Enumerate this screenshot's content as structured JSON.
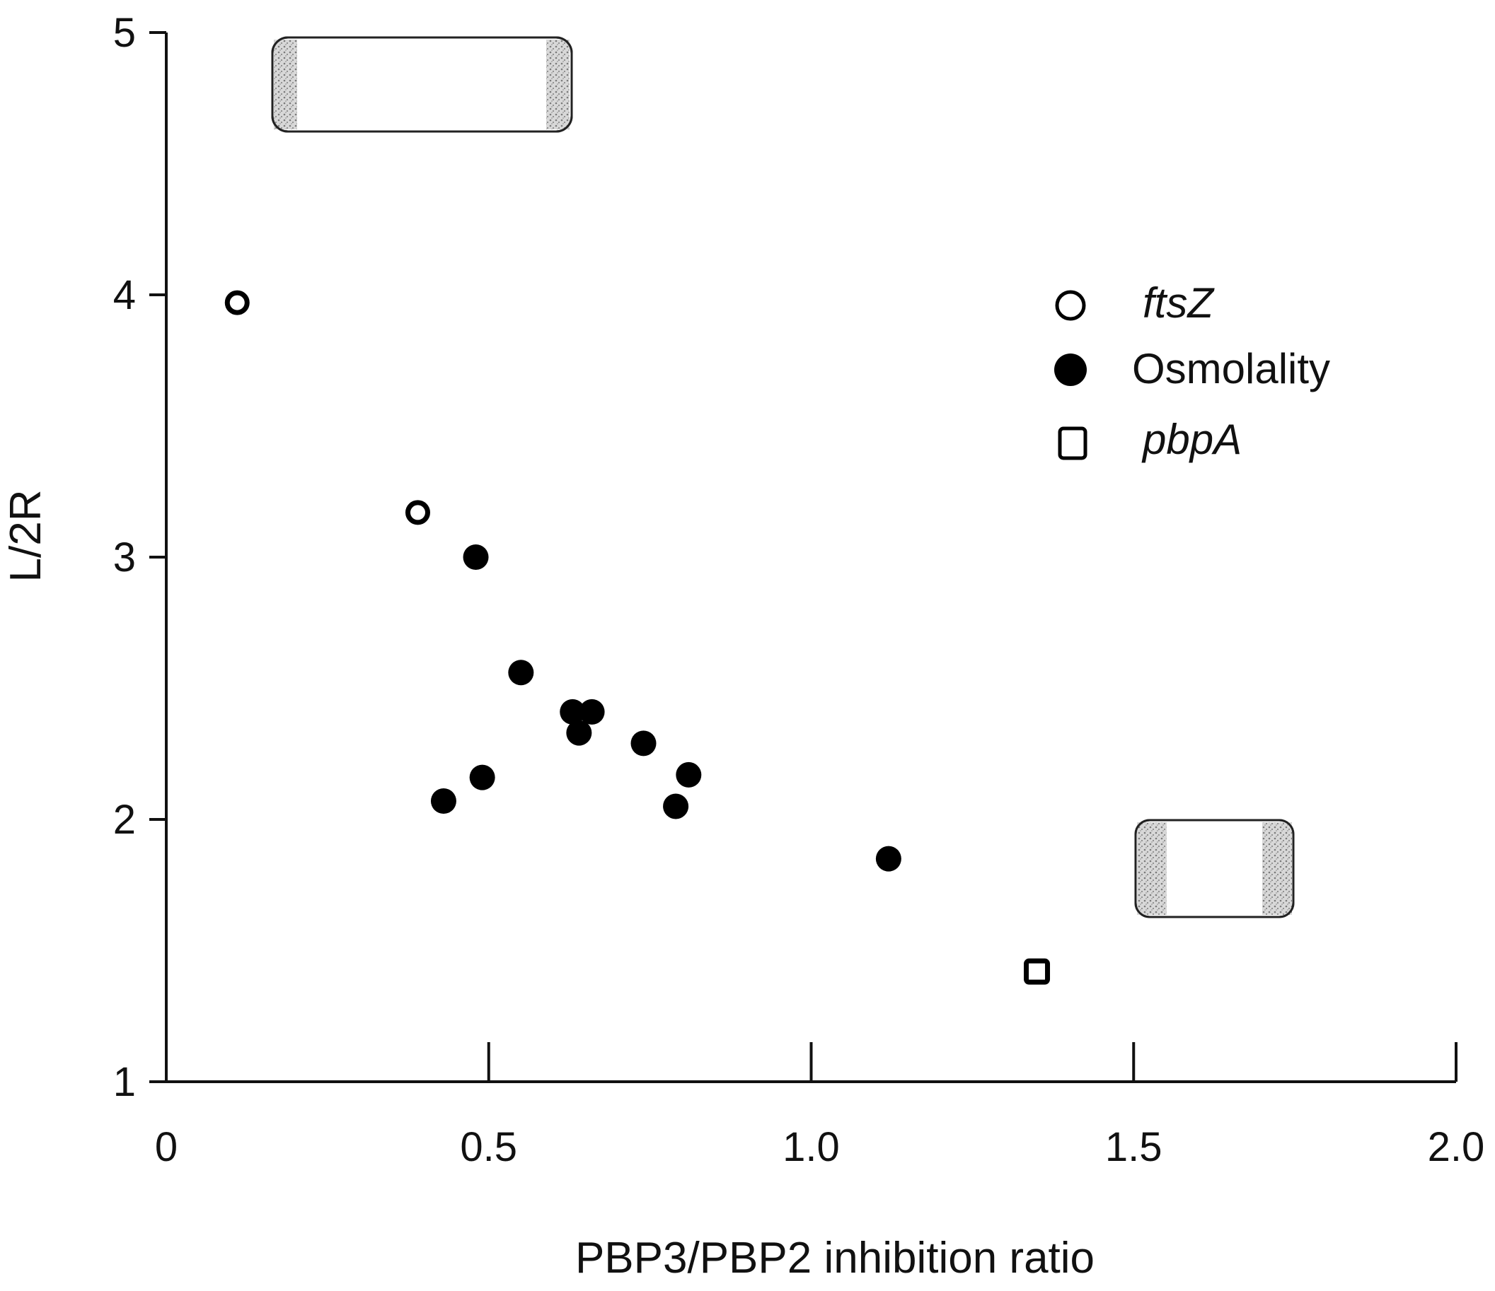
{
  "chart_data": {
    "type": "scatter",
    "title": "",
    "xlabel": "PBP3/PBP2 inhibition ratio",
    "ylabel": "L/2R",
    "xlim": [
      0,
      2.0
    ],
    "ylim": [
      1,
      5
    ],
    "x_ticks": [
      0,
      0.5,
      1.0,
      1.5,
      2.0
    ],
    "x_tick_labels": [
      "0",
      "0.5",
      "1.0",
      "1.5",
      "2.0"
    ],
    "y_ticks": [
      1,
      2,
      3,
      4,
      5
    ],
    "y_tick_labels": [
      "1",
      "2",
      "3",
      "4",
      "5"
    ],
    "grid": false,
    "legend_position": "right",
    "series": [
      {
        "name": "ftsZ",
        "marker": "open-circle",
        "color": "#000000",
        "points": [
          {
            "x": 0.11,
            "y": 3.97
          },
          {
            "x": 0.39,
            "y": 3.17
          }
        ]
      },
      {
        "name": "Osmolality",
        "marker": "filled-circle",
        "color": "#000000",
        "points": [
          {
            "x": 0.48,
            "y": 3.0
          },
          {
            "x": 0.55,
            "y": 2.56
          },
          {
            "x": 0.63,
            "y": 2.41
          },
          {
            "x": 0.66,
            "y": 2.41
          },
          {
            "x": 0.64,
            "y": 2.33
          },
          {
            "x": 0.74,
            "y": 2.29
          },
          {
            "x": 0.49,
            "y": 2.16
          },
          {
            "x": 0.81,
            "y": 2.17
          },
          {
            "x": 0.43,
            "y": 2.07
          },
          {
            "x": 0.79,
            "y": 2.05
          },
          {
            "x": 1.12,
            "y": 1.85
          }
        ]
      },
      {
        "name": "pbpA",
        "marker": "open-square",
        "color": "#000000",
        "points": [
          {
            "x": 1.35,
            "y": 1.42
          }
        ]
      }
    ],
    "annotations": [
      {
        "type": "cell-illustration",
        "description": "long rod-shaped cell with stippled poles",
        "x_range": [
          0.16,
          0.63
        ],
        "y_range": [
          4.75,
          5.1
        ]
      },
      {
        "type": "cell-illustration",
        "description": "short rod-shaped cell with stippled poles",
        "x_range": [
          1.51,
          1.75
        ],
        "y_range": [
          1.67,
          2.05
        ]
      }
    ]
  }
}
